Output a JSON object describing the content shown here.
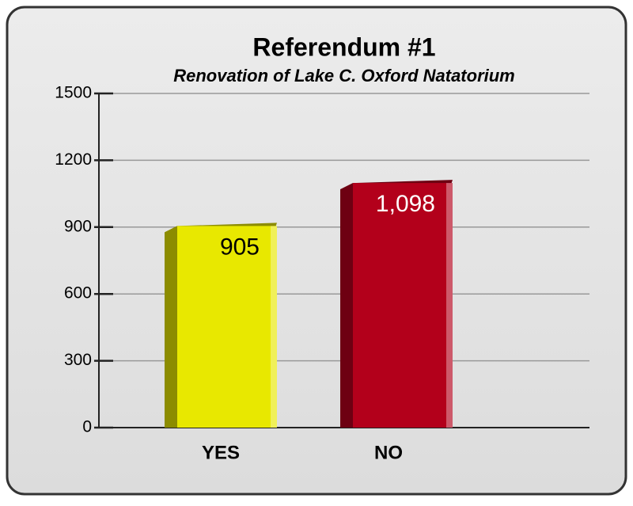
{
  "chart_data": {
    "type": "bar3d",
    "title": "Referendum #1",
    "subtitle": "Renovation of Lake C. Oxford Natatorium",
    "categories": [
      "YES",
      "NO"
    ],
    "values": [
      905,
      1098
    ],
    "value_labels": [
      "905",
      "1,098"
    ],
    "colors": [
      "#e8e800",
      "#b3001b"
    ],
    "side_colors": [
      "#8c8c00",
      "#6e0012"
    ],
    "value_label_colors": [
      "#000000",
      "#ffffff"
    ],
    "ylim": [
      0,
      1500
    ],
    "yticks": [
      0,
      300,
      600,
      900,
      1200,
      1500
    ],
    "grid": true
  }
}
